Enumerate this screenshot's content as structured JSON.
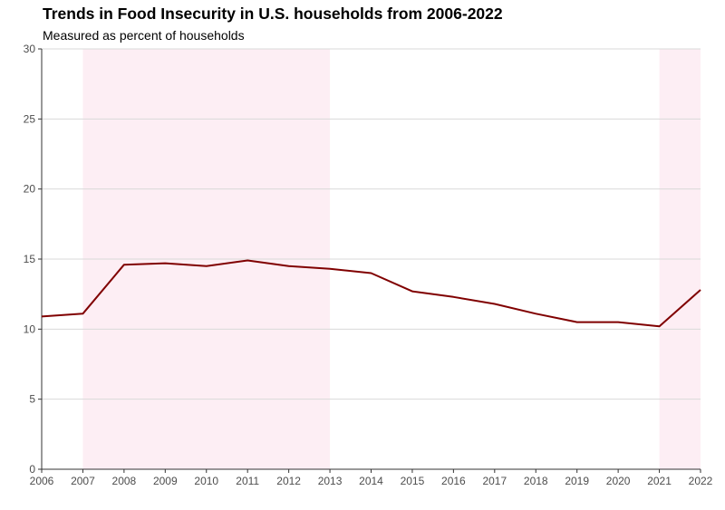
{
  "chart_data": {
    "type": "line",
    "title": "Trends in Food Insecurity in U.S. households from 2006-2022",
    "subtitle": "Measured as percent of households",
    "xlabel": "",
    "ylabel": "",
    "x": [
      2006,
      2007,
      2008,
      2009,
      2010,
      2011,
      2012,
      2013,
      2014,
      2015,
      2016,
      2017,
      2018,
      2019,
      2020,
      2021,
      2022
    ],
    "values": [
      10.9,
      11.1,
      14.6,
      14.7,
      14.5,
      14.9,
      14.5,
      14.3,
      14.0,
      12.7,
      12.3,
      11.8,
      11.1,
      10.5,
      10.5,
      10.2,
      12.8
    ],
    "xlim": [
      2006,
      2022
    ],
    "ylim": [
      0,
      30
    ],
    "yticks": [
      0,
      5,
      10,
      15,
      20,
      25,
      30
    ],
    "xticks": [
      2006,
      2007,
      2008,
      2009,
      2010,
      2011,
      2012,
      2013,
      2014,
      2015,
      2016,
      2017,
      2018,
      2019,
      2020,
      2021,
      2022
    ],
    "shaded_periods": [
      [
        2007,
        2013
      ],
      [
        2021,
        2022
      ]
    ],
    "grid": true,
    "colors": {
      "line": "#800000",
      "shade": "#fdeef4",
      "grid": "#d9d9d9"
    }
  }
}
